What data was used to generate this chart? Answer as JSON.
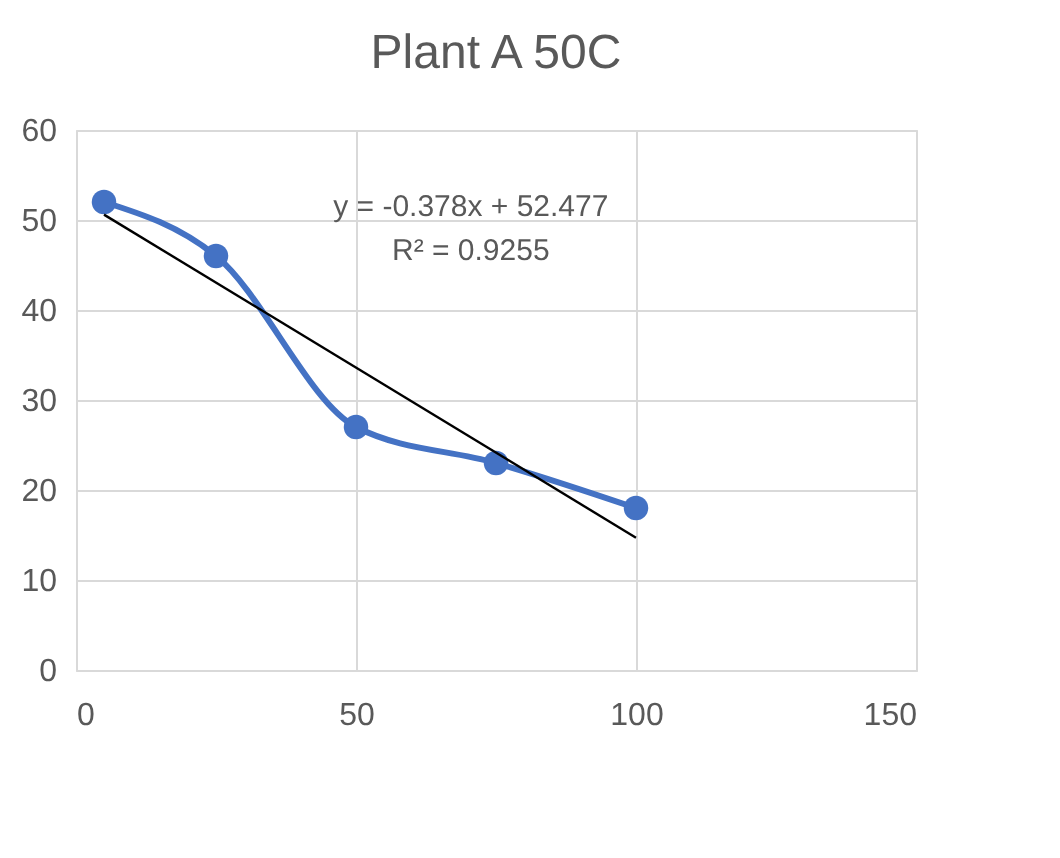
{
  "chart_data": {
    "type": "line",
    "title": "Plant A 50C",
    "series": [
      {
        "color": "#4472c4",
        "marker": "circle",
        "x": [
          5,
          25,
          50,
          75,
          100
        ],
        "values": [
          52,
          46,
          27,
          23,
          18
        ]
      },
      {
        "color": "#000000",
        "marker": "none",
        "x": [
          5,
          100
        ],
        "values": [
          50.6,
          14.7
        ]
      }
    ],
    "xlim": [
      0,
      150
    ],
    "xticks": [
      0,
      50,
      100,
      150
    ],
    "ylim": [
      0,
      60
    ],
    "yticks": [
      0,
      10,
      20,
      30,
      40,
      50,
      60
    ],
    "grid": true,
    "annotations": [
      "y = -0.378x + 52.477",
      "R² = 0.9255"
    ]
  }
}
